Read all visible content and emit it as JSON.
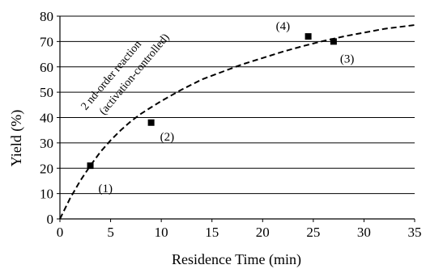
{
  "chart_data": {
    "type": "scatter",
    "xlabel": "Residence Time (min)",
    "ylabel": "Yield (%)",
    "xlim": [
      0,
      35
    ],
    "ylim": [
      0,
      80
    ],
    "xticks": [
      0,
      5,
      10,
      15,
      20,
      25,
      30,
      35
    ],
    "yticks": [
      0,
      10,
      20,
      30,
      40,
      50,
      60,
      70,
      80
    ],
    "grid": "horizontal",
    "series": [
      {
        "type": "scatter",
        "marker": "square",
        "points": [
          {
            "x": 3,
            "y": 21,
            "label": "(1)"
          },
          {
            "x": 9,
            "y": 38,
            "label": "(2)"
          },
          {
            "x": 27,
            "y": 70,
            "label": "(3)"
          },
          {
            "x": 24.5,
            "y": 72,
            "label": "(4)"
          }
        ]
      },
      {
        "type": "line",
        "style": "dashed",
        "x": [
          0,
          1,
          2,
          3,
          4,
          5,
          6,
          7,
          8,
          9,
          10,
          12,
          14,
          16,
          18,
          20,
          22,
          24,
          26,
          28,
          30,
          32,
          35
        ],
        "y": [
          0,
          8.1,
          15,
          21,
          26.5,
          31,
          35,
          38.5,
          41.5,
          44,
          46.5,
          51,
          55,
          58,
          61,
          63.5,
          66,
          68.2,
          70.2,
          72,
          73.5,
          75,
          76.5
        ]
      }
    ],
    "annotation": {
      "lines": [
        "2 nd-order reaction",
        "(activation-controlled)"
      ]
    }
  }
}
